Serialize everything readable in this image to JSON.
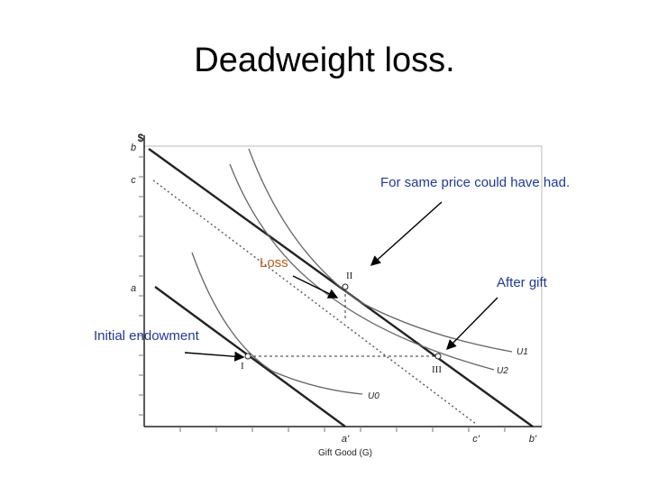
{
  "slide": {
    "title": "Deadweight loss."
  },
  "diagram": {
    "y_axis_label": "$",
    "x_axis_label": "Gift Good (G)",
    "y_ticks": [
      "b",
      "c",
      "a"
    ],
    "x_ticks": [
      "a'",
      "c'",
      "b'"
    ],
    "points": [
      "I",
      "II",
      "III"
    ],
    "curves": [
      "U0",
      "U1",
      "U2"
    ]
  },
  "annotations": {
    "same_price": "For same price could have had.",
    "loss": "Loss",
    "after_gift": "After gift",
    "initial": "Initial endowment"
  },
  "colors": {
    "annotation_blue": "#1f3a93",
    "loss_orange": "#c0561a",
    "chart_frame": "#bbbbbb",
    "curve_gray": "#666666"
  }
}
